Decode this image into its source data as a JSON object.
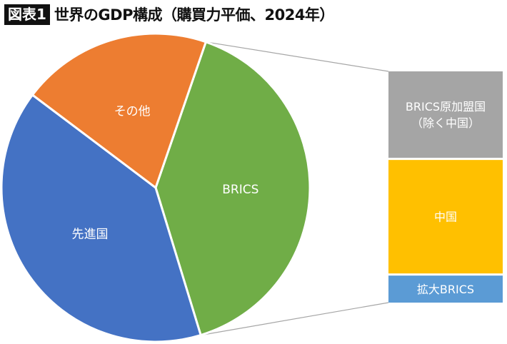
{
  "header": {
    "figure_label": "図表1",
    "title": "世界のGDP構成（購買力平価、2024年）"
  },
  "chart_data": [
    {
      "type": "pie",
      "categories": [
        "BRICS",
        "先進国",
        "その他"
      ],
      "values": [
        40,
        40,
        20
      ],
      "colors": [
        "#70ad47",
        "#4472c4",
        "#ed7d31"
      ],
      "legend": "none"
    },
    {
      "type": "bar",
      "stacked": true,
      "categories": [
        "BRICS原加盟国（除く中国）",
        "中国",
        "拡大BRICS"
      ],
      "values": [
        32,
        42,
        10
      ],
      "colors": [
        "#a5a5a5",
        "#ffc000",
        "#5b9bd5"
      ],
      "legend": "none"
    }
  ]
}
